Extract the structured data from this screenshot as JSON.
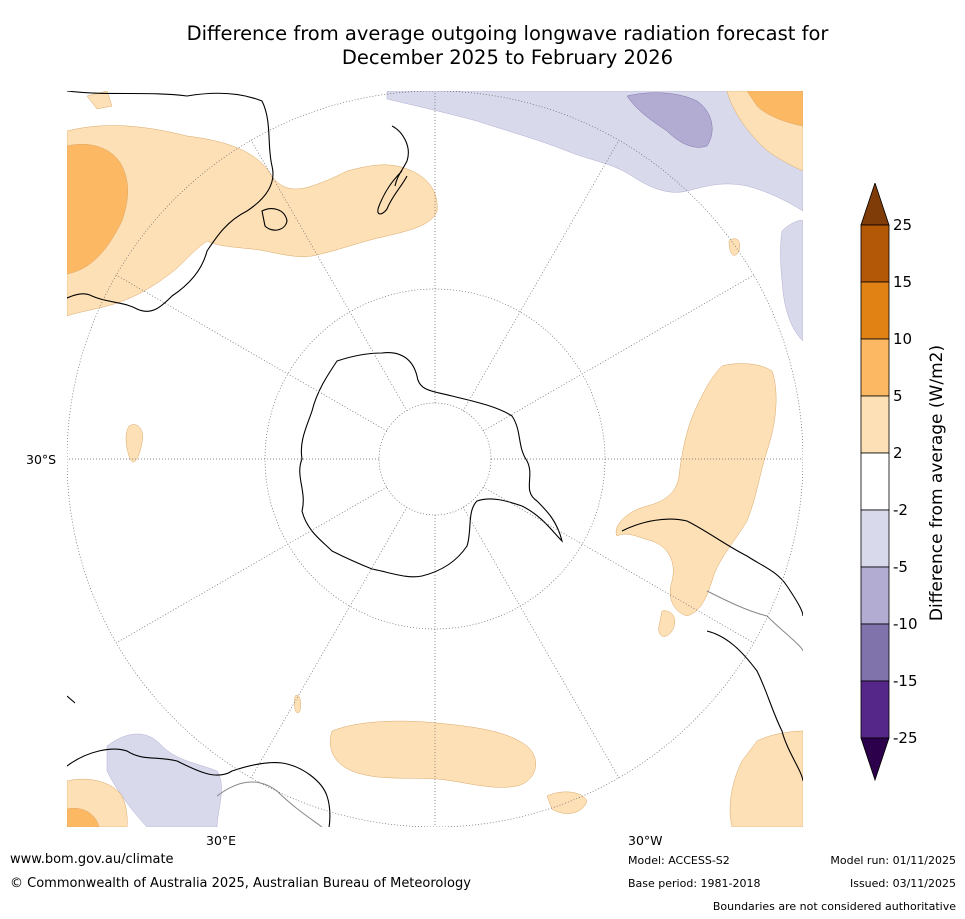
{
  "title_line1": "Difference from average outgoing longwave radiation forecast for",
  "title_line2": "December 2025 to February 2026",
  "map": {
    "lat_label": "30°S",
    "lon_label_east": "30°E",
    "lon_label_west": "30°W"
  },
  "colorbar": {
    "title": "Difference from average (W/m2)",
    "ticks": [
      "25",
      "15",
      "10",
      "5",
      "2",
      "-2",
      "-5",
      "-10",
      "-15",
      "-25"
    ],
    "colors": {
      "above25": "#7f3b08",
      "c15_25": "#b35806",
      "c10_15": "#e08214",
      "c5_10": "#fdb863",
      "c2_5": "#fee0b6",
      "cneutral": "#ffffff",
      "cm2_m5": "#d8daeb",
      "cm5_m10": "#b2abd2",
      "cm10_m15": "#8073ac",
      "cm15_m25": "#542788",
      "below_m25": "#2d004b"
    }
  },
  "footer": {
    "website": "www.bom.gov.au/climate",
    "copyright": "© Commonwealth of Australia 2025, Australian Bureau of Meteorology",
    "model": "Model: ACCESS-S2",
    "base_period": "Base period: 1981-2018",
    "model_run": "Model run: 01/11/2025",
    "issued": "Issued: 03/11/2025",
    "disclaimer": "Boundaries are not considered authoritative"
  }
}
